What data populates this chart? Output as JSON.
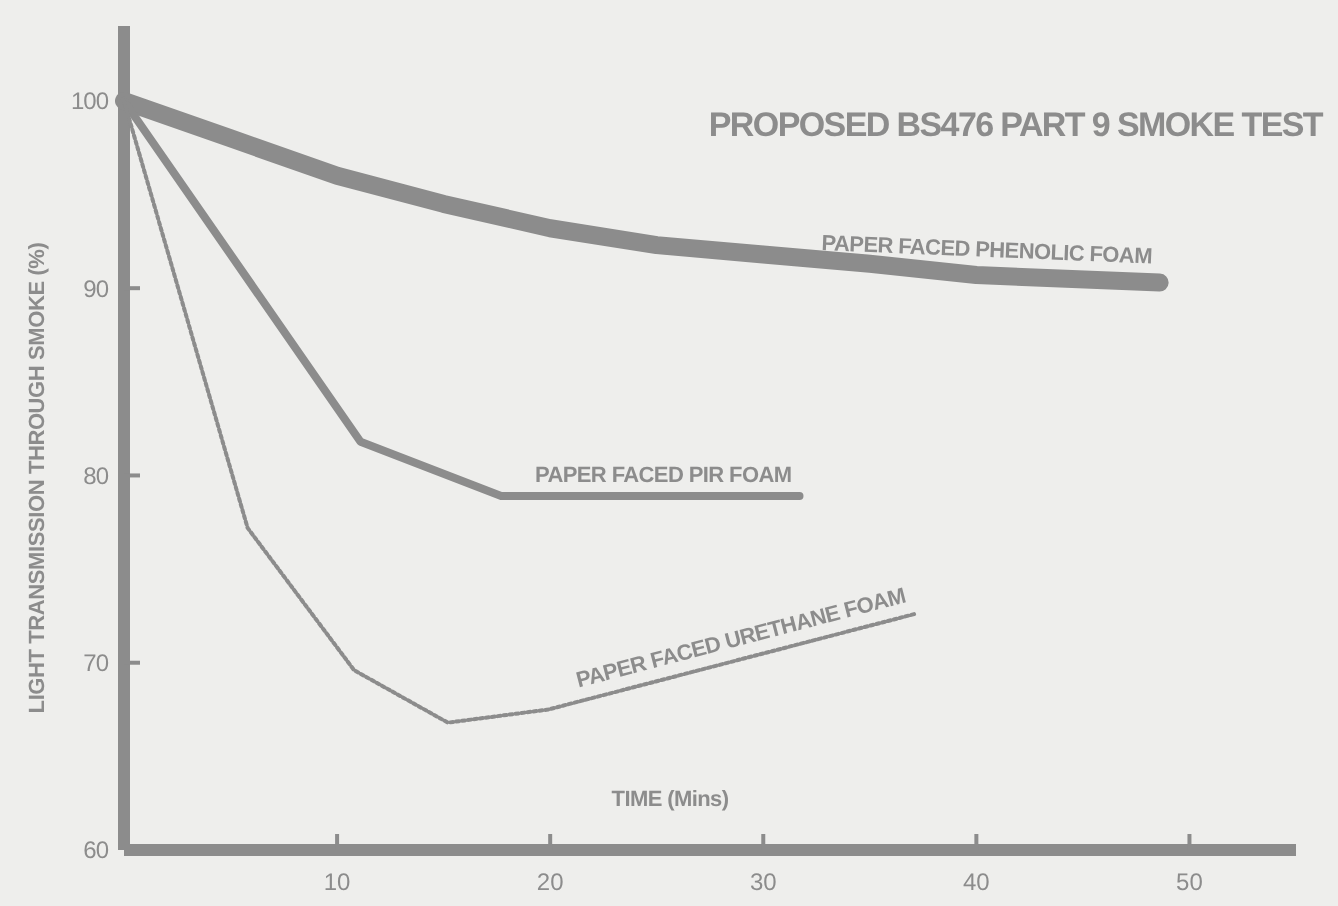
{
  "chart_data": {
    "type": "line",
    "title": "PROPOSED BS476 PART 9 SMOKE TEST",
    "xlabel": "TIME (Mins)",
    "ylabel": "LIGHT TRANSMISSION THROUGH SMOKE (%)",
    "xlim": [
      0,
      55
    ],
    "xticks": [
      10,
      20,
      30,
      40,
      50
    ],
    "ylim": [
      60,
      104
    ],
    "yticks": [
      60,
      70,
      80,
      90,
      100
    ],
    "grid": false,
    "legend": false,
    "marker": "none",
    "series": [
      {
        "name": "PAPER FACED PHENOLIC FOAM",
        "color": "#8c8c8c",
        "line_style": "solid",
        "x": [
          0,
          5,
          10,
          15,
          20,
          25,
          30,
          35,
          40,
          48.6
        ],
        "values": [
          100,
          98,
          96,
          94.5,
          93.2,
          92.3,
          91.8,
          91.3,
          90.7,
          90.3
        ]
      },
      {
        "name": "PAPER FACED PIR FOAM",
        "color": "#8c8c8c",
        "line_style": "solid",
        "x": [
          0,
          11.1,
          17.7,
          31.7
        ],
        "values": [
          100,
          81.8,
          78.9,
          78.9
        ]
      },
      {
        "name": "PAPER FACED URETHANE FOAM",
        "color": "#8c8c8c",
        "line_style": "dotted",
        "x": [
          0,
          5.8,
          10.8,
          15.2,
          19.9,
          37.1
        ],
        "values": [
          100,
          77.2,
          69.6,
          66.8,
          67.5,
          72.6
        ]
      }
    ]
  }
}
